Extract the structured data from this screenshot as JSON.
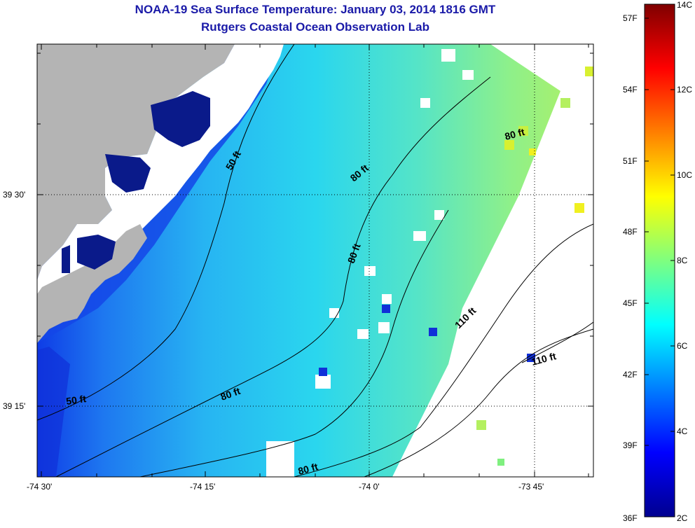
{
  "title": {
    "line1": "NOAA-19 Sea Surface Temperature:  January 03, 2014 1816 GMT",
    "line2": "Rutgers Coastal Ocean Observation Lab"
  },
  "map": {
    "type": "sst-map",
    "x_ticks": [
      "-74 30'",
      "-74 15'",
      "-74 0'",
      "-73 45'"
    ],
    "y_ticks": [
      "39 30'",
      "39 15'"
    ],
    "contour_labels": [
      "50 ft",
      "50 ft",
      "80 ft",
      "80 ft",
      "80 ft",
      "80 ft",
      "80 ft",
      "110 ft",
      "110 ft"
    ],
    "land_color": "#b4b4b4",
    "cloud_color": "#ffffff"
  },
  "colorbar": {
    "fahrenheit": [
      "57F",
      "54F",
      "51F",
      "48F",
      "45F",
      "42F",
      "39F",
      "36F"
    ],
    "celsius": [
      "14C",
      "12C",
      "10C",
      "8C",
      "6C",
      "4C",
      "2C"
    ],
    "range_c": [
      2,
      14
    ],
    "colors": [
      "#00008f",
      "#0000ff",
      "#007fff",
      "#00ffff",
      "#7fff7f",
      "#ffff00",
      "#ff7f00",
      "#ff0000",
      "#7f0000"
    ]
  }
}
